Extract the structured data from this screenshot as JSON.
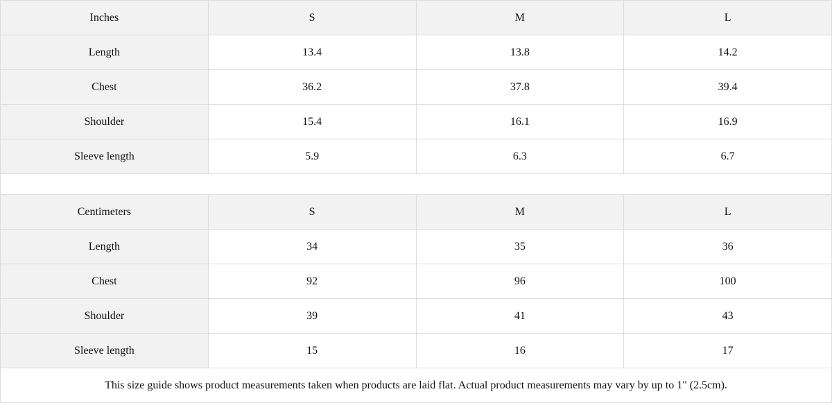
{
  "tables": [
    {
      "unit": "Inches",
      "sizes": [
        "S",
        "M",
        "L"
      ],
      "rows": [
        {
          "label": "Length",
          "values": [
            "13.4",
            "13.8",
            "14.2"
          ]
        },
        {
          "label": "Chest",
          "values": [
            "36.2",
            "37.8",
            "39.4"
          ]
        },
        {
          "label": "Shoulder",
          "values": [
            "15.4",
            "16.1",
            "16.9"
          ]
        },
        {
          "label": "Sleeve length",
          "values": [
            "5.9",
            "6.3",
            "6.7"
          ]
        }
      ]
    },
    {
      "unit": "Centimeters",
      "sizes": [
        "S",
        "M",
        "L"
      ],
      "rows": [
        {
          "label": "Length",
          "values": [
            "34",
            "35",
            "36"
          ]
        },
        {
          "label": "Chest",
          "values": [
            "92",
            "96",
            "100"
          ]
        },
        {
          "label": "Shoulder",
          "values": [
            "39",
            "41",
            "43"
          ]
        },
        {
          "label": "Sleeve length",
          "values": [
            "15",
            "16",
            "17"
          ]
        }
      ]
    }
  ],
  "note": "This size guide shows product measurements taken when products are laid flat.  Actual product measurements may vary by up to 1\" (2.5cm).",
  "colors": {
    "header_bg": "#f2f2f2",
    "border": "#dddddd"
  }
}
